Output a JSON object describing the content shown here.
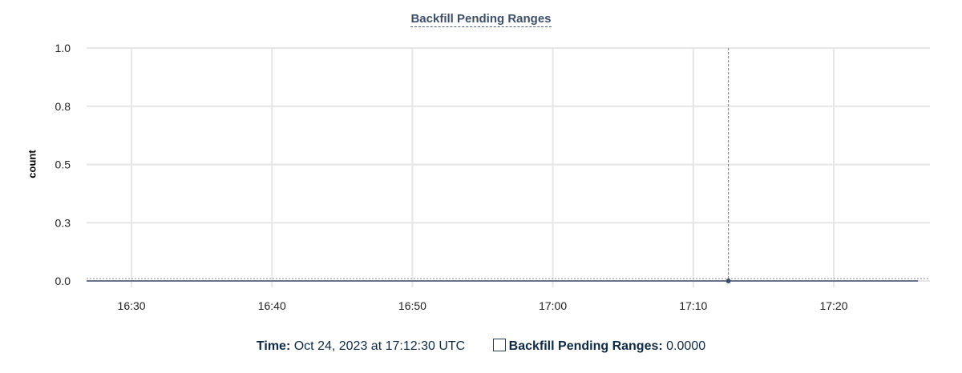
{
  "chart_data": {
    "type": "line",
    "title": "Backfill Pending Ranges",
    "ylabel": "count",
    "xlabel": "",
    "ylim": [
      0,
      1
    ],
    "yticks": [
      0,
      0.25,
      0.5,
      0.75,
      1
    ],
    "ytick_labels": [
      "0.0",
      "0.3",
      "0.5",
      "0.8",
      "1.0"
    ],
    "xlim": [
      "16:26:48",
      "17:26:51"
    ],
    "xticks": [
      "16:30",
      "16:40",
      "16:50",
      "17:00",
      "17:10",
      "17:20"
    ],
    "grid": true,
    "series": [
      {
        "name": "Backfill Pending Ranges",
        "color": "#3d4f6a",
        "x": [
          "16:26:48",
          "17:12:30",
          "17:26:00"
        ],
        "y": [
          0,
          0,
          0
        ]
      }
    ],
    "crosshair": {
      "x": "17:12:30",
      "y": 0
    }
  },
  "tooltip": {
    "time_label": "Time:",
    "time_value": "Oct 24, 2023 at 17:12:30 UTC",
    "series_label": "Backfill Pending Ranges:",
    "series_value": "0.0000"
  }
}
